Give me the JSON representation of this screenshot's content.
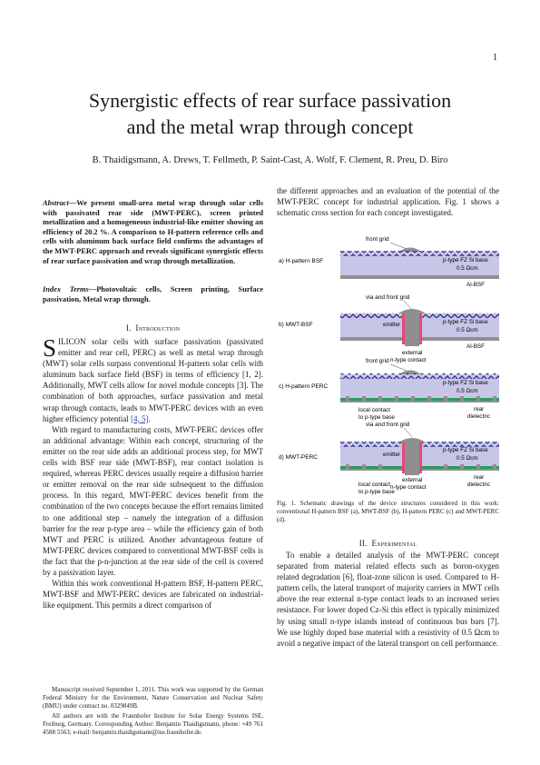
{
  "page_number": "1",
  "title_line1": "Synergistic effects of rear surface passivation",
  "title_line2": "and the metal wrap through concept",
  "authors": "B. Thaidigsmann, A. Drews, T. Fellmeth, P. Saint-Cast, A. Wolf, F. Clement, R. Preu, D. Biro",
  "abstract_label": "Abstract",
  "abstract_text": "—We present small-area metal wrap through solar cells with passivated rear side (MWT-PERC), screen printed metallization and a homogeneous industrial-like emitter showing an efficiency of 20.2 %. A comparison to H-pattern reference cells and cells with aluminum back surface field confirms the advantages of the MWT-PERC approach and reveals significant synergistic effects of rear surface passivation and wrap through metallization.",
  "index_label": "Index Terms",
  "index_text": "—Photovoltaic cells, Screen printing, Surface passivation, Metal wrap through.",
  "section1_num": "I.",
  "section1_title": "Introduction",
  "intro_dropcap": "S",
  "intro_p1": "ILICON solar cells with surface passivation (passivated emitter and rear cell, PERC) as well as metal wrap through (MWT) solar cells surpass conventional H-pattern solar cells with aluminum back surface field (BSF) in terms of efficiency [1, 2]. Additionally, MWT cells allow for novel module concepts [3]. The combination of both approaches, surface passivation and metal wrap through contacts, leads to MWT-PERC devices with an even higher efficiency potential ",
  "intro_p1_ref": "[4, 5]",
  "intro_p1_end": ".",
  "intro_p2": "With regard to manufacturing costs, MWT-PERC devices offer an additional advantage: Within each concept, structuring of the emitter on the rear side adds an additional process step, for MWT cells with BSF rear side (MWT-BSF), rear contact isolation is required, whereas PERC devices usually require a diffusion barrier or emitter removal on the rear side subsequent to the diffusion process. In this regard, MWT-PERC devices benefit from the combination of the two concepts because the effort remains limited to one additional step – namely the integration of a diffusion barrier for the rear p-type area – while the efficiency gain of both MWT and PERC is utilized. Another advantageous feature of MWT-PERC devices compared to conventional MWT-BSF cells is the fact that the p-n-junction at the rear side of the cell is covered by a passivation layer.",
  "intro_p3": "Within this work conventional H-pattern BSF, H-pattern PERC, MWT-BSF and MWT-PERC devices are fabricated on industrial-like equipment. This permits a direct comparison of",
  "footnote1": "Manuscript received September 1, 2011. This work was supported by the German Federal Ministry for the Environment, Nature Conservation and Nuclear Safety (BMU) under contract no. 0329849B.",
  "footnote2": "All authors are with the Fraunhofer Institute for Solar Energy Systems ISE, Freiburg, Germany. Corresponding Author: Benjamin Thaidigsmann, phone: +49 761 4588 5563; e-mail: benjamin.thaidigsmann@ise.fraunhofer.de.",
  "right_top": "the different approaches and an evaluation of the potential of the MWT-PERC concept for industrial application. Fig. 1 shows a schematic cross section for each concept investigated.",
  "figure": {
    "a_label": "a) H-pattern BSF",
    "b_label": "b) MWT-BSF",
    "c_label": "c) H-pattern PERC",
    "d_label": "d) MWT-PERC",
    "front_grid": "front grid",
    "via_front_grid": "via and front grid",
    "base": "p-type FZ Si base",
    "resistivity": "0.5 Ωcm",
    "al_bsf": "Al-BSF",
    "emitter": "emitter",
    "external": "external",
    "ntype_contact": "n-type contact",
    "rear": "rear",
    "dielectric": "dielectric",
    "local_contact": "local contact",
    "to_base": "to p-type base",
    "colors": {
      "base": "#c8c6e6",
      "emitter": "#e8487a",
      "metal": "#8f8f8f",
      "dielectric": "#2e9a5e",
      "wave": "#2b2b8a"
    }
  },
  "caption": "Fig. 1. Schematic drawings of the device structures considered in this work: conventional H-pattern BSF (a), MWT-BSF (b), H-pattern PERC (c) and MWT-PERC (d).",
  "section2_num": "II.",
  "section2_title": "Experimental",
  "exp_p1": "To enable a detailed analysis of the MWT-PERC concept separated from material related effects such as boron-oxygen related degradation [6], float-zone silicon is used. Compared to H-pattern cells, the lateral transport of majority carriers in MWT cells above the rear external n-type contact leads to an increased series resistance. For lower doped Cz-Si this effect is typically minimized by using small n-type islands instead of continuous bus bars [7]. We use highly doped base material with a resistivity of 0.5 Ωcm to avoid a negative impact of the lateral transport on cell performance."
}
